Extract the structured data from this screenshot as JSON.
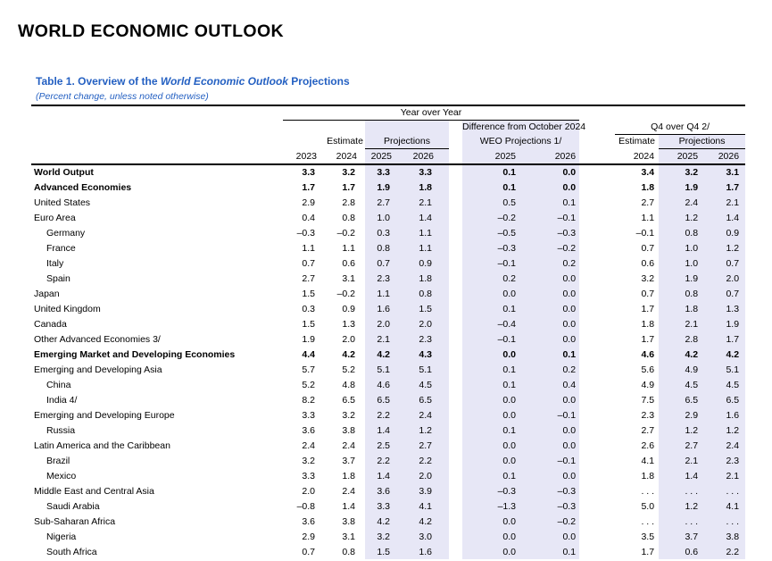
{
  "page_title": "WORLD ECONOMIC OUTLOOK",
  "table_title": {
    "prefix": "Table 1. Overview of the ",
    "italic": "World Economic Outlook",
    "suffix": " Projections"
  },
  "subtitle": "(Percent change, unless noted otherwise)",
  "colors": {
    "accent_blue": "#2460c2",
    "band_lavender": "#e7e7f6"
  },
  "header": {
    "year_over_year": "Year over Year",
    "estimate": "Estimate",
    "projections": "Projections",
    "difference_line1": "Difference from October 2024",
    "difference_line2": "WEO Projections 1/",
    "q4_over_q4": "Q4 over Q4 2/",
    "q4_estimate": "Estimate",
    "q4_projections": "Projections",
    "years": [
      "2023",
      "2024",
      "2025",
      "2026",
      "2025",
      "2026",
      "2024",
      "2025",
      "2026"
    ]
  },
  "chart_data": {
    "type": "table",
    "title": "Table 1. Overview of the World Economic Outlook Projections",
    "subtitle": "(Percent change, unless noted otherwise)",
    "column_groups": [
      "Year over Year",
      "Difference from October 2024 WEO Projections 1/",
      "Q4 over Q4 2/"
    ],
    "columns": [
      "2023",
      "2024 Estimate",
      "2025 Projections",
      "2026 Projections",
      "Diff 2025",
      "Diff 2026",
      "Q4 2024 Estimate",
      "Q4 2025 Projections",
      "Q4 2026 Projections"
    ]
  },
  "rows": [
    {
      "label": "World Output",
      "indent": 0,
      "bold": true,
      "values": [
        "3.3",
        "3.2",
        "3.3",
        "3.3",
        "0.1",
        "0.0",
        "3.4",
        "3.2",
        "3.1"
      ]
    },
    {
      "label": "Advanced Economies",
      "indent": 0,
      "bold": true,
      "values": [
        "1.7",
        "1.7",
        "1.9",
        "1.8",
        "0.1",
        "0.0",
        "1.8",
        "1.9",
        "1.7"
      ]
    },
    {
      "label": "United States",
      "indent": 0,
      "bold": false,
      "values": [
        "2.9",
        "2.8",
        "2.7",
        "2.1",
        "0.5",
        "0.1",
        "2.7",
        "2.4",
        "2.1"
      ]
    },
    {
      "label": "Euro Area",
      "indent": 0,
      "bold": false,
      "values": [
        "0.4",
        "0.8",
        "1.0",
        "1.4",
        "–0.2",
        "–0.1",
        "1.1",
        "1.2",
        "1.4"
      ]
    },
    {
      "label": "Germany",
      "indent": 1,
      "bold": false,
      "values": [
        "–0.3",
        "–0.2",
        "0.3",
        "1.1",
        "–0.5",
        "–0.3",
        "–0.1",
        "0.8",
        "0.9"
      ]
    },
    {
      "label": "France",
      "indent": 1,
      "bold": false,
      "values": [
        "1.1",
        "1.1",
        "0.8",
        "1.1",
        "–0.3",
        "–0.2",
        "0.7",
        "1.0",
        "1.2"
      ]
    },
    {
      "label": "Italy",
      "indent": 1,
      "bold": false,
      "values": [
        "0.7",
        "0.6",
        "0.7",
        "0.9",
        "–0.1",
        "0.2",
        "0.6",
        "1.0",
        "0.7"
      ]
    },
    {
      "label": "Spain",
      "indent": 1,
      "bold": false,
      "values": [
        "2.7",
        "3.1",
        "2.3",
        "1.8",
        "0.2",
        "0.0",
        "3.2",
        "1.9",
        "2.0"
      ]
    },
    {
      "label": "Japan",
      "indent": 0,
      "bold": false,
      "values": [
        "1.5",
        "–0.2",
        "1.1",
        "0.8",
        "0.0",
        "0.0",
        "0.7",
        "0.8",
        "0.7"
      ]
    },
    {
      "label": "United Kingdom",
      "indent": 0,
      "bold": false,
      "values": [
        "0.3",
        "0.9",
        "1.6",
        "1.5",
        "0.1",
        "0.0",
        "1.7",
        "1.8",
        "1.3"
      ]
    },
    {
      "label": "Canada",
      "indent": 0,
      "bold": false,
      "values": [
        "1.5",
        "1.3",
        "2.0",
        "2.0",
        "–0.4",
        "0.0",
        "1.8",
        "2.1",
        "1.9"
      ]
    },
    {
      "label": "Other Advanced Economies 3/",
      "indent": 0,
      "bold": false,
      "values": [
        "1.9",
        "2.0",
        "2.1",
        "2.3",
        "–0.1",
        "0.0",
        "1.7",
        "2.8",
        "1.7"
      ]
    },
    {
      "label": "Emerging Market and Developing Economies",
      "indent": 0,
      "bold": true,
      "values": [
        "4.4",
        "4.2",
        "4.2",
        "4.3",
        "0.0",
        "0.1",
        "4.6",
        "4.2",
        "4.2"
      ]
    },
    {
      "label": "Emerging and Developing Asia",
      "indent": 0,
      "bold": false,
      "values": [
        "5.7",
        "5.2",
        "5.1",
        "5.1",
        "0.1",
        "0.2",
        "5.6",
        "4.9",
        "5.1"
      ]
    },
    {
      "label": "China",
      "indent": 1,
      "bold": false,
      "values": [
        "5.2",
        "4.8",
        "4.6",
        "4.5",
        "0.1",
        "0.4",
        "4.9",
        "4.5",
        "4.5"
      ]
    },
    {
      "label": "India 4/",
      "indent": 1,
      "bold": false,
      "values": [
        "8.2",
        "6.5",
        "6.5",
        "6.5",
        "0.0",
        "0.0",
        "7.5",
        "6.5",
        "6.5"
      ]
    },
    {
      "label": "Emerging and Developing Europe",
      "indent": 0,
      "bold": false,
      "values": [
        "3.3",
        "3.2",
        "2.2",
        "2.4",
        "0.0",
        "–0.1",
        "2.3",
        "2.9",
        "1.6"
      ]
    },
    {
      "label": "Russia",
      "indent": 1,
      "bold": false,
      "values": [
        "3.6",
        "3.8",
        "1.4",
        "1.2",
        "0.1",
        "0.0",
        "2.7",
        "1.2",
        "1.2"
      ]
    },
    {
      "label": "Latin America and the Caribbean",
      "indent": 0,
      "bold": false,
      "values": [
        "2.4",
        "2.4",
        "2.5",
        "2.7",
        "0.0",
        "0.0",
        "2.6",
        "2.7",
        "2.4"
      ]
    },
    {
      "label": "Brazil",
      "indent": 1,
      "bold": false,
      "values": [
        "3.2",
        "3.7",
        "2.2",
        "2.2",
        "0.0",
        "–0.1",
        "4.1",
        "2.1",
        "2.3"
      ]
    },
    {
      "label": "Mexico",
      "indent": 1,
      "bold": false,
      "values": [
        "3.3",
        "1.8",
        "1.4",
        "2.0",
        "0.1",
        "0.0",
        "1.8",
        "1.4",
        "2.1"
      ]
    },
    {
      "label": "Middle East and Central Asia",
      "indent": 0,
      "bold": false,
      "values": [
        "2.0",
        "2.4",
        "3.6",
        "3.9",
        "–0.3",
        "–0.3",
        ". . .",
        ". . .",
        ". . ."
      ]
    },
    {
      "label": "Saudi Arabia",
      "indent": 1,
      "bold": false,
      "values": [
        "–0.8",
        "1.4",
        "3.3",
        "4.1",
        "–1.3",
        "–0.3",
        "5.0",
        "1.2",
        "4.1"
      ]
    },
    {
      "label": "Sub-Saharan Africa",
      "indent": 0,
      "bold": false,
      "values": [
        "3.6",
        "3.8",
        "4.2",
        "4.2",
        "0.0",
        "–0.2",
        ". . .",
        ". . .",
        ". . ."
      ]
    },
    {
      "label": "Nigeria",
      "indent": 1,
      "bold": false,
      "values": [
        "2.9",
        "3.1",
        "3.2",
        "3.0",
        "0.0",
        "0.0",
        "3.5",
        "3.7",
        "3.8"
      ]
    },
    {
      "label": "South Africa",
      "indent": 1,
      "bold": false,
      "values": [
        "0.7",
        "0.8",
        "1.5",
        "1.6",
        "0.0",
        "0.1",
        "1.7",
        "0.6",
        "2.2"
      ]
    }
  ]
}
